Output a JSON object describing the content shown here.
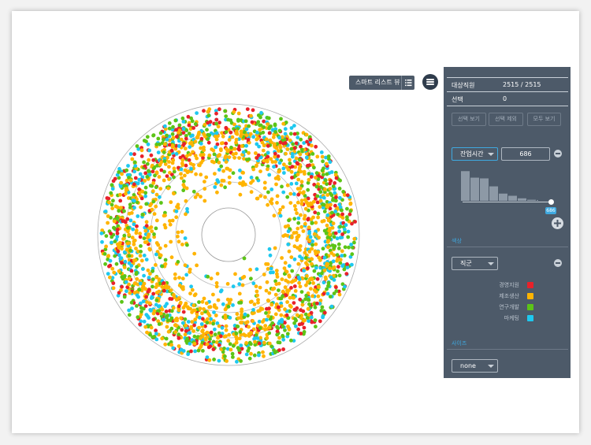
{
  "toolbar": {
    "smart_list_label": "스마트 리스트 뷰",
    "list_icon": "list-icon",
    "menu_icon": "hamburger-menu-icon"
  },
  "panel": {
    "target_label": "대상직원",
    "target_value": "2515  / 2515",
    "selected_label": "선택",
    "selected_value": "0",
    "buttons": {
      "view_selected": "선택 보기",
      "exclude_selected": "선택 제외",
      "view_all": "모두 보기"
    },
    "filter": {
      "field": "잔업시간",
      "value": "686",
      "slider_value": "686",
      "slider_fraction": 1.0,
      "histogram": [
        0.82,
        0.64,
        0.62,
        0.4,
        0.2,
        0.14,
        0.07,
        0.03,
        0.02
      ]
    },
    "color_section": {
      "label": "색상",
      "field": "직군",
      "legend": [
        {
          "label": "경영지원",
          "color": "#e8212a"
        },
        {
          "label": "제조생산",
          "color": "#ffb400"
        },
        {
          "label": "연구개발",
          "color": "#5cc417"
        },
        {
          "label": "마케팅",
          "color": "#1ec8ef"
        }
      ]
    },
    "size_section": {
      "label": "사이즈",
      "field": "none"
    }
  },
  "colors": {
    "panel_bg": "#4d5a69",
    "accent": "#3fa9e0",
    "ring_stroke": "#999999"
  }
}
